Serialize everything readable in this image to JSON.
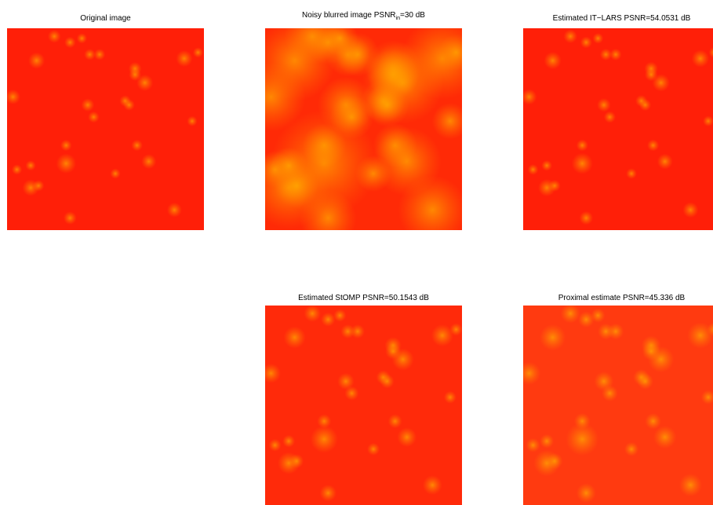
{
  "figure": {
    "panels": [
      {
        "id": "original",
        "title": "Original image",
        "title_main": "",
        "title_sub": "",
        "title_rest": "",
        "blur": 0.8,
        "halo": 0.55,
        "bg": "#ff1f08"
      },
      {
        "id": "noisy",
        "title": "",
        "title_main": "Noisy blurred image PSNR",
        "title_sub": "in",
        "title_rest": "=30 dB",
        "blur": 2.0,
        "halo": 1.6,
        "bg": "#ff2a06"
      },
      {
        "id": "it-lars",
        "title": "Estimated IT−LARS PSNR=54.0531 dB",
        "title_main": "",
        "title_sub": "",
        "title_rest": "",
        "blur": 0.8,
        "halo": 0.6,
        "bg": "#ff1f08"
      },
      {
        "id": "stomp",
        "title": "Estimated StOMP PSNR=50.1543 dB",
        "title_main": "",
        "title_sub": "",
        "title_rest": "",
        "blur": 0.9,
        "halo": 0.75,
        "bg": "#ff2a0a"
      },
      {
        "id": "proximal",
        "title": "Proximal estimate PSNR=45.336 dB",
        "title_main": "",
        "title_sub": "",
        "title_rest": "",
        "blur": 1.0,
        "halo": 0.85,
        "bg": "#ff3a10"
      }
    ],
    "colormap": [
      "#ff1f08",
      "#ff7f00",
      "#ffff00",
      "#00ff7f",
      "#00ffff",
      "#0000ff",
      "#00007f"
    ]
  }
}
